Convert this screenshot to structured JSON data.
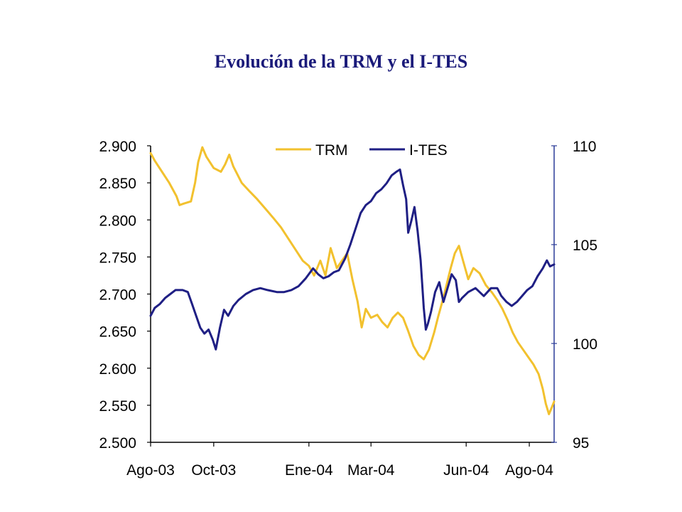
{
  "title": "Evolución de la TRM y el I-TES",
  "colors": {
    "trm": "#f2c12e",
    "ites": "#1f1f84",
    "axis": "#000000",
    "right_axis": "#2b3c98"
  },
  "chart_data": {
    "type": "line",
    "title": "Evolución de la TRM y el I-TES",
    "legend": {
      "placement": "top-center",
      "entries": [
        "TRM",
        "I-TES"
      ]
    },
    "grid": false,
    "x": {
      "type": "date",
      "range": [
        "2003-08-01",
        "2004-08-25"
      ],
      "ticks": [
        {
          "date": "2003-08-01",
          "label": "Ago-03"
        },
        {
          "date": "2003-10-01",
          "label": "Oct-03"
        },
        {
          "date": "2004-01-01",
          "label": "Ene-04"
        },
        {
          "date": "2004-03-01",
          "label": "Mar-04"
        },
        {
          "date": "2004-06-01",
          "label": "Jun-04"
        },
        {
          "date": "2004-08-01",
          "label": "Ago-04"
        }
      ]
    },
    "y_left": {
      "range": [
        2500,
        2900
      ],
      "ticks": [
        {
          "value": 2500,
          "label": "2.500"
        },
        {
          "value": 2550,
          "label": "2.550"
        },
        {
          "value": 2600,
          "label": "2.600"
        },
        {
          "value": 2650,
          "label": "2.650"
        },
        {
          "value": 2700,
          "label": "2.700"
        },
        {
          "value": 2750,
          "label": "2.750"
        },
        {
          "value": 2800,
          "label": "2.800"
        },
        {
          "value": 2850,
          "label": "2.850"
        },
        {
          "value": 2900,
          "label": "2.900"
        }
      ]
    },
    "y_right": {
      "range": [
        95,
        110
      ],
      "ticks": [
        {
          "value": 95,
          "label": "95"
        },
        {
          "value": 100,
          "label": "100"
        },
        {
          "value": 105,
          "label": "105"
        },
        {
          "value": 110,
          "label": "110"
        }
      ]
    },
    "series": [
      {
        "name": "TRM",
        "axis": "left",
        "color": "#f2c12e",
        "points": [
          [
            "2003-08-01",
            2890
          ],
          [
            "2003-08-05",
            2880
          ],
          [
            "2003-08-12",
            2865
          ],
          [
            "2003-08-19",
            2850
          ],
          [
            "2003-08-26",
            2832
          ],
          [
            "2003-08-29",
            2820
          ],
          [
            "2003-09-02",
            2822
          ],
          [
            "2003-09-09",
            2825
          ],
          [
            "2003-09-13",
            2850
          ],
          [
            "2003-09-16",
            2878
          ],
          [
            "2003-09-20",
            2898
          ],
          [
            "2003-09-24",
            2885
          ],
          [
            "2003-10-01",
            2870
          ],
          [
            "2003-10-08",
            2865
          ],
          [
            "2003-10-12",
            2875
          ],
          [
            "2003-10-16",
            2888
          ],
          [
            "2003-10-20",
            2872
          ],
          [
            "2003-10-28",
            2850
          ],
          [
            "2003-11-05",
            2838
          ],
          [
            "2003-11-12",
            2828
          ],
          [
            "2003-11-20",
            2815
          ],
          [
            "2003-11-28",
            2802
          ],
          [
            "2003-12-05",
            2790
          ],
          [
            "2003-12-12",
            2775
          ],
          [
            "2003-12-19",
            2760
          ],
          [
            "2003-12-26",
            2745
          ],
          [
            "2004-01-01",
            2738
          ],
          [
            "2004-01-06",
            2725
          ],
          [
            "2004-01-12",
            2745
          ],
          [
            "2004-01-17",
            2725
          ],
          [
            "2004-01-22",
            2762
          ],
          [
            "2004-01-28",
            2735
          ],
          [
            "2004-02-02",
            2745
          ],
          [
            "2004-02-07",
            2755
          ],
          [
            "2004-02-12",
            2720
          ],
          [
            "2004-02-17",
            2690
          ],
          [
            "2004-02-21",
            2655
          ],
          [
            "2004-02-25",
            2680
          ],
          [
            "2004-03-01",
            2668
          ],
          [
            "2004-03-07",
            2672
          ],
          [
            "2004-03-12",
            2662
          ],
          [
            "2004-03-17",
            2655
          ],
          [
            "2004-03-22",
            2668
          ],
          [
            "2004-03-27",
            2675
          ],
          [
            "2004-04-01",
            2668
          ],
          [
            "2004-04-06",
            2650
          ],
          [
            "2004-04-11",
            2630
          ],
          [
            "2004-04-16",
            2618
          ],
          [
            "2004-04-21",
            2612
          ],
          [
            "2004-04-26",
            2625
          ],
          [
            "2004-05-01",
            2648
          ],
          [
            "2004-05-05",
            2670
          ],
          [
            "2004-05-09",
            2690
          ],
          [
            "2004-05-13",
            2712
          ],
          [
            "2004-05-17",
            2735
          ],
          [
            "2004-05-21",
            2755
          ],
          [
            "2004-05-25",
            2765
          ],
          [
            "2004-05-29",
            2745
          ],
          [
            "2004-06-03",
            2720
          ],
          [
            "2004-06-08",
            2735
          ],
          [
            "2004-06-14",
            2728
          ],
          [
            "2004-06-20",
            2712
          ],
          [
            "2004-06-26",
            2702
          ],
          [
            "2004-07-01",
            2692
          ],
          [
            "2004-07-06",
            2680
          ],
          [
            "2004-07-11",
            2665
          ],
          [
            "2004-07-16",
            2648
          ],
          [
            "2004-07-21",
            2635
          ],
          [
            "2004-07-26",
            2625
          ],
          [
            "2004-07-31",
            2615
          ],
          [
            "2004-08-05",
            2605
          ],
          [
            "2004-08-10",
            2592
          ],
          [
            "2004-08-14",
            2572
          ],
          [
            "2004-08-17",
            2552
          ],
          [
            "2004-08-20",
            2538
          ],
          [
            "2004-08-23",
            2548
          ],
          [
            "2004-08-25",
            2555
          ]
        ]
      },
      {
        "name": "I-TES",
        "axis": "right",
        "color": "#1f1f84",
        "points": [
          [
            "2003-08-01",
            101.4
          ],
          [
            "2003-08-05",
            101.8
          ],
          [
            "2003-08-10",
            102.0
          ],
          [
            "2003-08-15",
            102.3
          ],
          [
            "2003-08-20",
            102.5
          ],
          [
            "2003-08-25",
            102.7
          ],
          [
            "2003-09-01",
            102.7
          ],
          [
            "2003-09-06",
            102.6
          ],
          [
            "2003-09-10",
            102.0
          ],
          [
            "2003-09-14",
            101.4
          ],
          [
            "2003-09-18",
            100.8
          ],
          [
            "2003-09-22",
            100.5
          ],
          [
            "2003-09-26",
            100.7
          ],
          [
            "2003-09-30",
            100.2
          ],
          [
            "2003-10-03",
            99.7
          ],
          [
            "2003-10-07",
            100.8
          ],
          [
            "2003-10-11",
            101.7
          ],
          [
            "2003-10-15",
            101.4
          ],
          [
            "2003-10-20",
            101.9
          ],
          [
            "2003-10-25",
            102.2
          ],
          [
            "2003-11-01",
            102.5
          ],
          [
            "2003-11-08",
            102.7
          ],
          [
            "2003-11-15",
            102.8
          ],
          [
            "2003-11-22",
            102.7
          ],
          [
            "2003-12-01",
            102.6
          ],
          [
            "2003-12-08",
            102.6
          ],
          [
            "2003-12-15",
            102.7
          ],
          [
            "2003-12-22",
            102.9
          ],
          [
            "2003-12-29",
            103.3
          ],
          [
            "2004-01-05",
            103.8
          ],
          [
            "2004-01-10",
            103.5
          ],
          [
            "2004-01-15",
            103.3
          ],
          [
            "2004-01-20",
            103.4
          ],
          [
            "2004-01-25",
            103.6
          ],
          [
            "2004-01-30",
            103.7
          ],
          [
            "2004-02-05",
            104.3
          ],
          [
            "2004-02-10",
            105.0
          ],
          [
            "2004-02-15",
            105.8
          ],
          [
            "2004-02-20",
            106.6
          ],
          [
            "2004-02-25",
            107.0
          ],
          [
            "2004-03-01",
            107.2
          ],
          [
            "2004-03-06",
            107.6
          ],
          [
            "2004-03-11",
            107.8
          ],
          [
            "2004-03-16",
            108.1
          ],
          [
            "2004-03-21",
            108.5
          ],
          [
            "2004-03-26",
            108.7
          ],
          [
            "2004-03-29",
            108.8
          ],
          [
            "2004-04-01",
            108.0
          ],
          [
            "2004-04-04",
            107.3
          ],
          [
            "2004-04-06",
            105.6
          ],
          [
            "2004-04-09",
            106.2
          ],
          [
            "2004-04-12",
            106.9
          ],
          [
            "2004-04-15",
            105.7
          ],
          [
            "2004-04-18",
            104.2
          ],
          [
            "2004-04-21",
            101.8
          ],
          [
            "2004-04-23",
            100.7
          ],
          [
            "2004-04-25",
            101.0
          ],
          [
            "2004-04-28",
            101.6
          ],
          [
            "2004-05-02",
            102.6
          ],
          [
            "2004-05-06",
            103.1
          ],
          [
            "2004-05-10",
            102.1
          ],
          [
            "2004-05-14",
            102.8
          ],
          [
            "2004-05-18",
            103.5
          ],
          [
            "2004-05-22",
            103.2
          ],
          [
            "2004-05-25",
            102.1
          ],
          [
            "2004-05-28",
            102.3
          ],
          [
            "2004-06-03",
            102.6
          ],
          [
            "2004-06-10",
            102.8
          ],
          [
            "2004-06-18",
            102.4
          ],
          [
            "2004-06-25",
            102.8
          ],
          [
            "2004-07-01",
            102.8
          ],
          [
            "2004-07-05",
            102.4
          ],
          [
            "2004-07-10",
            102.1
          ],
          [
            "2004-07-15",
            101.9
          ],
          [
            "2004-07-20",
            102.1
          ],
          [
            "2004-07-25",
            102.4
          ],
          [
            "2004-07-30",
            102.7
          ],
          [
            "2004-08-04",
            102.9
          ],
          [
            "2004-08-09",
            103.4
          ],
          [
            "2004-08-14",
            103.8
          ],
          [
            "2004-08-18",
            104.2
          ],
          [
            "2004-08-21",
            103.9
          ],
          [
            "2004-08-25",
            104.0
          ]
        ]
      }
    ]
  }
}
